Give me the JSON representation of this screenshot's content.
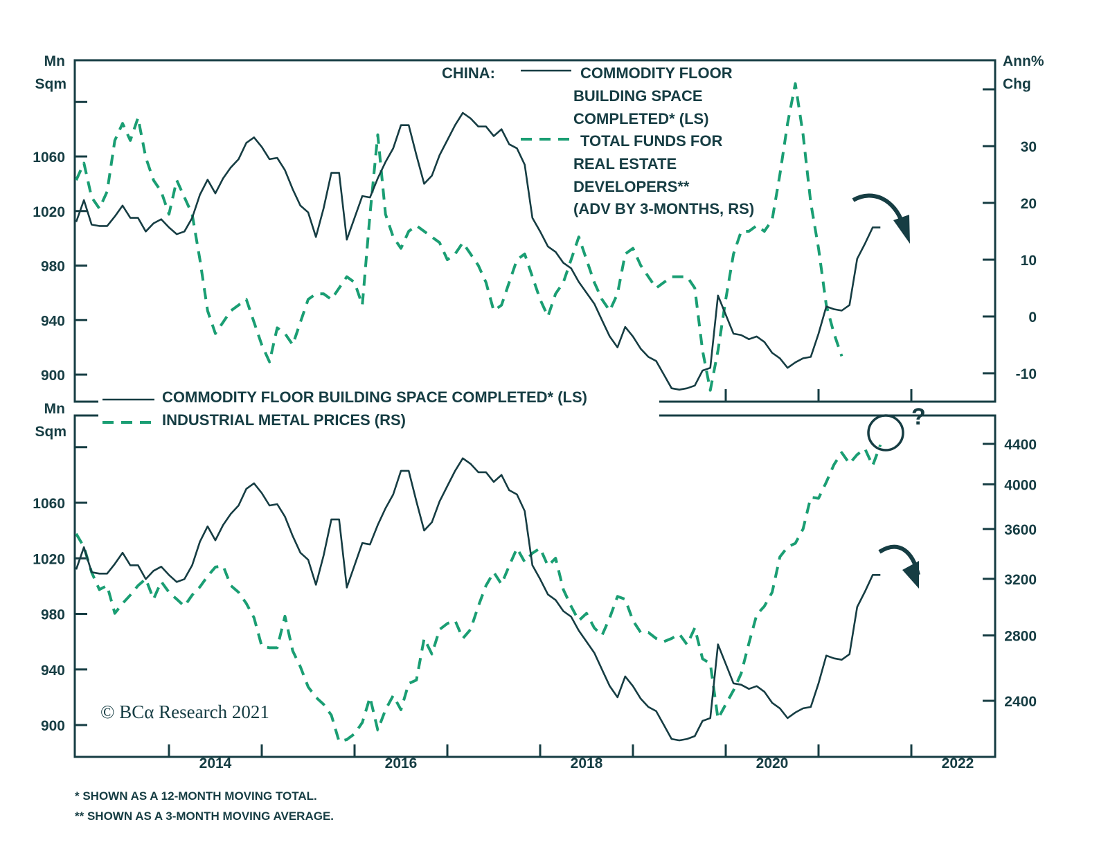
{
  "colors": {
    "ink": "#163d43",
    "dashed_series": "#1a9e73",
    "background": "#ffffff"
  },
  "chart_data": [
    {
      "type": "line",
      "panel": "top",
      "title": "",
      "legend_prefix": "CHINA:",
      "legend": [
        {
          "series": "floor_space",
          "lines": [
            "COMMODITY FLOOR",
            "BUILDING SPACE",
            "COMPLETED* (LS)"
          ],
          "style": "solid"
        },
        {
          "series": "funds",
          "lines": [
            "TOTAL FUNDS FOR",
            "REAL ESTATE",
            "DEVELOPERS**",
            "(ADV BY 3-MONTHS, RS)"
          ],
          "style": "dashed"
        }
      ],
      "legend_position": "top-center",
      "left_axis": {
        "label_lines": [
          "Mn",
          "Sqm"
        ],
        "ticks": [
          900,
          940,
          980,
          1020,
          1060
        ],
        "minor_ticks": [
          1100
        ],
        "range": [
          880,
          1130
        ]
      },
      "right_axis": {
        "label_lines": [
          "Ann%",
          "Chg"
        ],
        "ticks": [
          -10,
          0,
          10,
          20,
          30
        ],
        "minor_ticks": [
          40
        ],
        "range": [
          -15,
          45
        ]
      },
      "annotations": [
        {
          "type": "curved-arrow-down",
          "near": "2021-07"
        }
      ],
      "series": [
        {
          "name": "Commodity floor building space completed (12-month moving total, LS)",
          "key": "floor_space",
          "axis": "left",
          "start": "2013-01",
          "values": [
            1012,
            1028,
            1010,
            1009,
            1009,
            1016,
            1024,
            1015,
            1015,
            1005,
            1011,
            1014,
            1008,
            1003,
            1005,
            1015,
            1032,
            1043,
            1033,
            1044,
            1052,
            1058,
            1070,
            1074,
            1067,
            1058,
            1059,
            1050,
            1036,
            1024,
            1019,
            1001,
            1022,
            1048,
            1048,
            999,
            1015,
            1031,
            1030,
            1044,
            1056,
            1066,
            1083,
            1083,
            1061,
            1040,
            1046,
            1061,
            1072,
            1083,
            1092,
            1088,
            1082,
            1082,
            1075,
            1080,
            1069,
            1066,
            1054,
            1015,
            1005,
            994,
            990,
            982,
            978,
            968,
            960,
            952,
            940,
            928,
            920,
            935,
            928,
            919,
            913,
            910,
            900,
            890,
            889,
            890,
            892,
            903,
            905,
            958,
            944,
            930,
            929,
            926,
            928,
            924,
            916,
            912,
            905,
            909,
            912,
            913,
            930,
            950,
            948,
            947,
            951,
            985,
            996,
            1008,
            1008
          ]
        },
        {
          "name": "Total funds for real estate developers (3-month moving average, adv by 3 months, RS, ann % chg)",
          "key": "funds",
          "axis": "right",
          "start": "2013-01",
          "values": [
            24,
            27,
            21,
            19,
            22,
            31,
            34,
            31,
            35,
            28,
            24,
            22,
            18,
            24,
            21,
            18,
            10,
            1,
            -3,
            -1,
            1,
            2,
            3,
            -1,
            -5,
            -8,
            -2,
            -3,
            -5,
            -1,
            3,
            4,
            4,
            3,
            5,
            7,
            6,
            2,
            18,
            32,
            18,
            14,
            12,
            15,
            16,
            15,
            14,
            13,
            10,
            11,
            13,
            11,
            9,
            6,
            1,
            2,
            6,
            10,
            11,
            7,
            3,
            0,
            4,
            6,
            10,
            14,
            10,
            6,
            3,
            1,
            4,
            11,
            12,
            9,
            7,
            5,
            6,
            7,
            7,
            7,
            5,
            -6,
            -13,
            -6,
            3,
            11,
            15,
            15,
            16,
            15,
            17,
            25,
            34,
            41,
            32,
            20,
            12,
            2,
            -3,
            -7
          ],
          "values_end": "2021-04"
        }
      ]
    },
    {
      "type": "line",
      "panel": "bottom",
      "title": "",
      "legend": [
        {
          "series": "floor_space",
          "label": "COMMODITY FLOOR BUILDING SPACE COMPLETED* (LS)",
          "style": "solid"
        },
        {
          "series": "metals",
          "label": "INDUSTRIAL METAL PRICES (RS)",
          "style": "dashed"
        }
      ],
      "legend_position": "top-left",
      "left_axis": {
        "label_lines": [
          "Mn",
          "Sqm"
        ],
        "ticks": [
          900,
          940,
          980,
          1020,
          1060
        ],
        "minor_ticks": [
          1100
        ],
        "range": [
          877,
          1123
        ]
      },
      "right_axis": {
        "scale": "log",
        "ticks": [
          2400,
          2800,
          3200,
          3600,
          4000,
          4400
        ],
        "range": [
          2100,
          4800
        ]
      },
      "x_axis": {
        "tick_labels": [
          "2014",
          "2016",
          "2018",
          "2020",
          "2022"
        ],
        "range": [
          "2013-01",
          "2022-10"
        ]
      },
      "annotations": [
        {
          "type": "circle",
          "near": "2021-07",
          "label": "?"
        },
        {
          "type": "curved-arrow-down",
          "near": "2021-08"
        }
      ],
      "series": [
        {
          "name": "Commodity floor building space completed (12-month moving total, LS)",
          "key": "floor_space",
          "axis": "left",
          "start": "2013-01",
          "values": [
            1012,
            1028,
            1010,
            1009,
            1009,
            1016,
            1024,
            1015,
            1015,
            1005,
            1011,
            1014,
            1008,
            1003,
            1005,
            1015,
            1032,
            1043,
            1033,
            1044,
            1052,
            1058,
            1070,
            1074,
            1067,
            1058,
            1059,
            1050,
            1036,
            1024,
            1019,
            1001,
            1022,
            1048,
            1048,
            999,
            1015,
            1031,
            1030,
            1044,
            1056,
            1066,
            1083,
            1083,
            1061,
            1040,
            1046,
            1061,
            1072,
            1083,
            1092,
            1088,
            1082,
            1082,
            1075,
            1080,
            1069,
            1066,
            1054,
            1015,
            1005,
            994,
            990,
            982,
            978,
            968,
            960,
            952,
            940,
            928,
            920,
            935,
            928,
            919,
            913,
            910,
            900,
            890,
            889,
            890,
            892,
            903,
            905,
            958,
            944,
            930,
            929,
            926,
            928,
            924,
            916,
            912,
            905,
            909,
            912,
            913,
            930,
            950,
            948,
            947,
            951,
            985,
            996,
            1008,
            1008
          ]
        },
        {
          "name": "Industrial metal prices (RS)",
          "key": "metals",
          "axis": "right",
          "start": "2013-01",
          "values": [
            3560,
            3450,
            3250,
            3120,
            3150,
            2950,
            3020,
            3080,
            3150,
            3200,
            3050,
            3180,
            3100,
            3050,
            3000,
            3080,
            3140,
            3220,
            3290,
            3300,
            3150,
            3100,
            3020,
            2920,
            2730,
            2720,
            2720,
            2930,
            2700,
            2600,
            2480,
            2420,
            2380,
            2320,
            2180,
            2190,
            2220,
            2280,
            2420,
            2240,
            2350,
            2430,
            2350,
            2500,
            2520,
            2780,
            2680,
            2840,
            2880,
            2900,
            2780,
            2840,
            3000,
            3150,
            3250,
            3160,
            3300,
            3440,
            3330,
            3400,
            3440,
            3300,
            3360,
            3120,
            3000,
            2900,
            2950,
            2850,
            2800,
            2920,
            3070,
            3050,
            2900,
            2820,
            2820,
            2780,
            2760,
            2780,
            2810,
            2740,
            2850,
            2650,
            2620,
            2300,
            2380,
            2460,
            2560,
            2750,
            2940,
            3000,
            3100,
            3370,
            3450,
            3480,
            3600,
            3880,
            3870,
            4020,
            4190,
            4310,
            4200,
            4290,
            4350,
            4180,
            4390
          ]
        }
      ]
    }
  ],
  "x_axis": {
    "tick_labels": [
      "2014",
      "2016",
      "2018",
      "2020",
      "2022"
    ]
  },
  "footnotes": [
    "*  SHOWN AS A 12-MONTH MOVING TOTAL.",
    "** SHOWN AS A 3-MONTH MOVING AVERAGE."
  ],
  "brand": "© BCα Research 2021",
  "question_mark": "?"
}
